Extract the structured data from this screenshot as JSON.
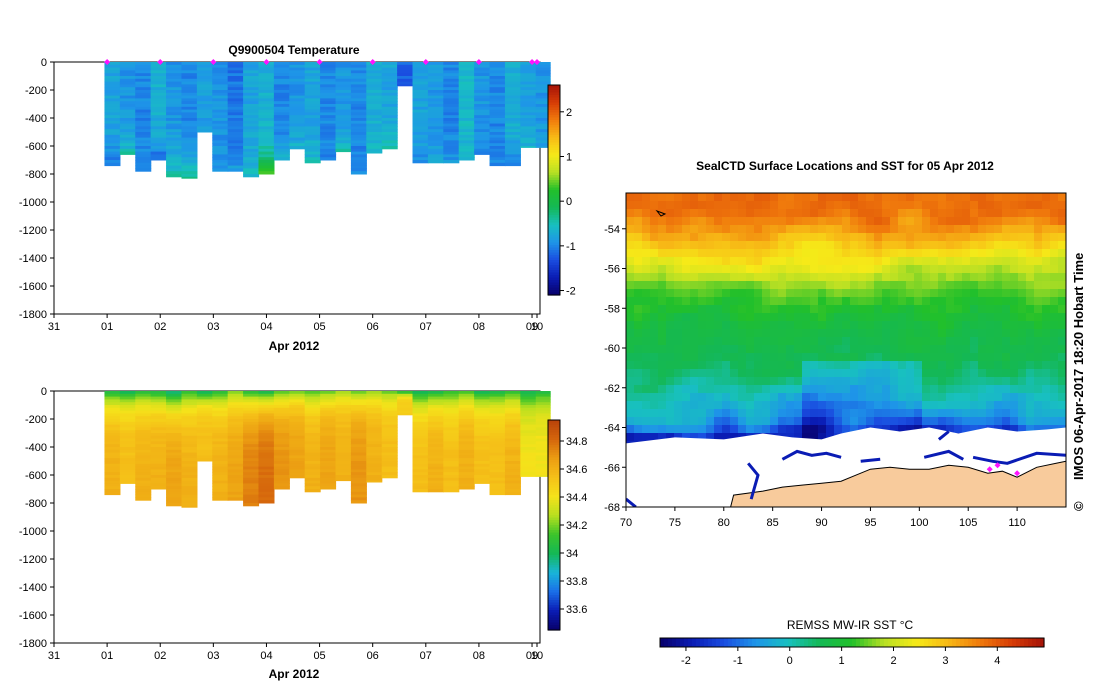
{
  "chart_data": [
    {
      "id": "temperature",
      "type": "heatmap",
      "title": "Q9900504  Temperature",
      "xlabel": "Apr 2012",
      "ylabel": "",
      "xlim": [
        31,
        40.15
      ],
      "ylim": [
        -1800,
        0
      ],
      "x_ticks": [
        {
          "v": 31,
          "label": "31"
        },
        {
          "v": 32,
          "label": "01"
        },
        {
          "v": 33,
          "label": "02"
        },
        {
          "v": 34,
          "label": "03"
        },
        {
          "v": 35,
          "label": "04"
        },
        {
          "v": 36,
          "label": "05"
        },
        {
          "v": 37,
          "label": "06"
        },
        {
          "v": 38,
          "label": "07"
        },
        {
          "v": 39,
          "label": "08"
        },
        {
          "v": 40,
          "label": "09"
        },
        {
          "v": 41,
          "label": "10"
        }
      ],
      "y_ticks": [
        0,
        -200,
        -400,
        -600,
        -800,
        -1000,
        -1200,
        -1400,
        -1600,
        -1800
      ],
      "colorbar": {
        "min": -2.1,
        "max": 2.6,
        "ticks": [
          2,
          1,
          0,
          -1,
          -2
        ]
      },
      "surface_markers_x": [
        32,
        33,
        34,
        35,
        36,
        37,
        38,
        39,
        40,
        41
      ],
      "profile_times": [
        31.95,
        32.24,
        32.53,
        32.82,
        33.11,
        33.4,
        33.69,
        33.98,
        34.27,
        34.56,
        34.85,
        35.14,
        35.43,
        35.72,
        36.01,
        36.3,
        36.59,
        36.88,
        37.17,
        37.46,
        37.75,
        38.04,
        38.33,
        38.62,
        38.91,
        39.2,
        39.49,
        39.78,
        40.07
      ],
      "profile_depths": [
        -740,
        -660,
        -780,
        -700,
        -820,
        -830,
        -500,
        -780,
        -780,
        -820,
        -800,
        -700,
        -620,
        -720,
        -700,
        -640,
        -800,
        -650,
        -620,
        -170,
        -720,
        -720,
        -720,
        -700,
        -660,
        -740,
        -740,
        -610,
        -610
      ],
      "profile_surface": [
        -0.8,
        -0.9,
        -1.0,
        -0.7,
        -0.9,
        -1.0,
        -0.8,
        -0.9,
        -1.1,
        -0.8,
        -0.7,
        -1.0,
        -0.9,
        -0.8,
        -1.0,
        -0.9,
        -1.0,
        -0.7,
        -0.8,
        -1.2,
        -0.8,
        -0.9,
        -1.0,
        -0.6,
        -0.9,
        -1.0,
        -0.7,
        -0.8,
        -0.9
      ],
      "profile_bottom": [
        -1.2,
        -0.4,
        -1.0,
        -1.3,
        -0.3,
        -0.2,
        -0.9,
        -1.0,
        -0.8,
        -0.5,
        0.5,
        -0.6,
        -0.6,
        -0.5,
        -1.0,
        -0.4,
        -1.0,
        -0.6,
        -0.3,
        -1.2,
        -1.0,
        -0.8,
        -0.9,
        -0.7,
        -1.1,
        -1.0,
        -1.1,
        -0.6,
        -0.8
      ]
    },
    {
      "id": "salinity",
      "type": "heatmap",
      "title": "",
      "xlabel": "Apr 2012",
      "ylabel": "",
      "xlim": [
        31,
        40.15
      ],
      "ylim": [
        -1800,
        0
      ],
      "x_ticks": [
        {
          "v": 31,
          "label": "31"
        },
        {
          "v": 32,
          "label": "01"
        },
        {
          "v": 33,
          "label": "02"
        },
        {
          "v": 34,
          "label": "03"
        },
        {
          "v": 35,
          "label": "04"
        },
        {
          "v": 36,
          "label": "05"
        },
        {
          "v": 37,
          "label": "06"
        },
        {
          "v": 38,
          "label": "07"
        },
        {
          "v": 39,
          "label": "08"
        },
        {
          "v": 40,
          "label": "09"
        },
        {
          "v": 41,
          "label": "10"
        }
      ],
      "y_ticks": [
        0,
        -200,
        -400,
        -600,
        -800,
        -1000,
        -1200,
        -1400,
        -1600,
        -1800
      ],
      "colorbar": {
        "min": 33.45,
        "max": 34.95,
        "ticks": [
          34.8,
          34.6,
          34.4,
          34.2,
          34,
          33.8,
          33.6
        ]
      },
      "profile_times": [
        31.95,
        32.24,
        32.53,
        32.82,
        33.11,
        33.4,
        33.69,
        33.98,
        34.27,
        34.56,
        34.85,
        35.14,
        35.43,
        35.72,
        36.01,
        36.3,
        36.59,
        36.88,
        37.17,
        37.46,
        37.75,
        38.04,
        38.33,
        38.62,
        38.91,
        39.2,
        39.49,
        39.78,
        40.07
      ],
      "profile_depths": [
        -740,
        -660,
        -780,
        -700,
        -820,
        -830,
        -500,
        -780,
        -780,
        -820,
        -800,
        -700,
        -620,
        -720,
        -700,
        -640,
        -800,
        -650,
        -620,
        -170,
        -720,
        -720,
        -720,
        -700,
        -660,
        -740,
        -740,
        -610,
        -610
      ],
      "profile_surface": [
        34.05,
        34.0,
        34.1,
        34.05,
        33.95,
        34.1,
        34.0,
        34.1,
        34.2,
        34.1,
        34.05,
        34.15,
        34.2,
        34.15,
        34.2,
        34.25,
        34.2,
        34.25,
        34.2,
        34.1,
        34.0,
        34.05,
        34.1,
        34.15,
        34.0,
        34.05,
        34.1,
        34.0,
        34.05
      ],
      "profile_bottom": [
        34.6,
        34.55,
        34.6,
        34.6,
        34.65,
        34.6,
        34.55,
        34.6,
        34.65,
        34.75,
        34.8,
        34.7,
        34.65,
        34.6,
        34.65,
        34.6,
        34.7,
        34.6,
        34.55,
        34.5,
        34.55,
        34.6,
        34.55,
        34.6,
        34.55,
        34.55,
        34.6,
        34.4,
        34.4
      ]
    },
    {
      "id": "sst-map",
      "type": "heatmap",
      "title": "SealCTD Surface Locations and SST for 05 Apr 2012",
      "xlabel": "",
      "ylabel": "",
      "xlim": [
        70,
        115
      ],
      "ylim": [
        -68,
        -52.2
      ],
      "x_ticks": [
        70,
        75,
        80,
        85,
        90,
        95,
        100,
        105,
        110
      ],
      "y_ticks": [
        -54,
        -56,
        -58,
        -60,
        -62,
        -64,
        -66,
        -68
      ],
      "colorbar_title": "REMSS MW-IR SST °C",
      "colorbar": {
        "min": -2.5,
        "max": 4.9,
        "ticks": [
          -2,
          -1,
          0,
          1,
          2,
          3,
          4
        ]
      },
      "sst_by_latitude": [
        {
          "lat": -53,
          "sst": 3.8
        },
        {
          "lat": -55,
          "sst": 2.7
        },
        {
          "lat": -57,
          "sst": 1.5
        },
        {
          "lat": -59,
          "sst": 0.8
        },
        {
          "lat": -61,
          "sst": 0.6
        },
        {
          "lat": -63,
          "sst": -0.2
        },
        {
          "lat": -64,
          "sst": -1.0
        },
        {
          "lat": -64.6,
          "sst": -1.8
        }
      ],
      "seal_locations": [
        {
          "lon": 107.2,
          "lat": -66.1
        },
        {
          "lon": 108.0,
          "lat": -65.9
        },
        {
          "lon": 110.0,
          "lat": -66.3
        }
      ],
      "credit": "IMOS 06-Apr-2017 18:20 Hobart Time",
      "copyright_symbol": "©"
    }
  ],
  "palette": {
    "temperature": [
      "#08006a",
      "#0a1cb4",
      "#1a4de0",
      "#1e95e8",
      "#18c0c0",
      "#14b855",
      "#22c02a",
      "#b8e024",
      "#f6ea18",
      "#f7b916",
      "#f07a0c",
      "#d63c06",
      "#a41208"
    ],
    "salinity": [
      "#08006a",
      "#0a1cb4",
      "#1a6ee8",
      "#19b5d9",
      "#14b855",
      "#3cc42a",
      "#b9e01f",
      "#f5e21a",
      "#f5c018",
      "#eb9c12",
      "#d5650c",
      "#b8420a"
    ],
    "sst": [
      "#08006a",
      "#0a1cb4",
      "#1a4de0",
      "#1e95e8",
      "#18c0c0",
      "#14b855",
      "#22c02a",
      "#b8e024",
      "#f6ea18",
      "#f7b916",
      "#f07a0c",
      "#d63c06",
      "#a41208"
    ],
    "land": "#f8cb9c",
    "ice": "#ffffff",
    "coastline": "#0a1cb4",
    "marker": "#ff14ff"
  }
}
